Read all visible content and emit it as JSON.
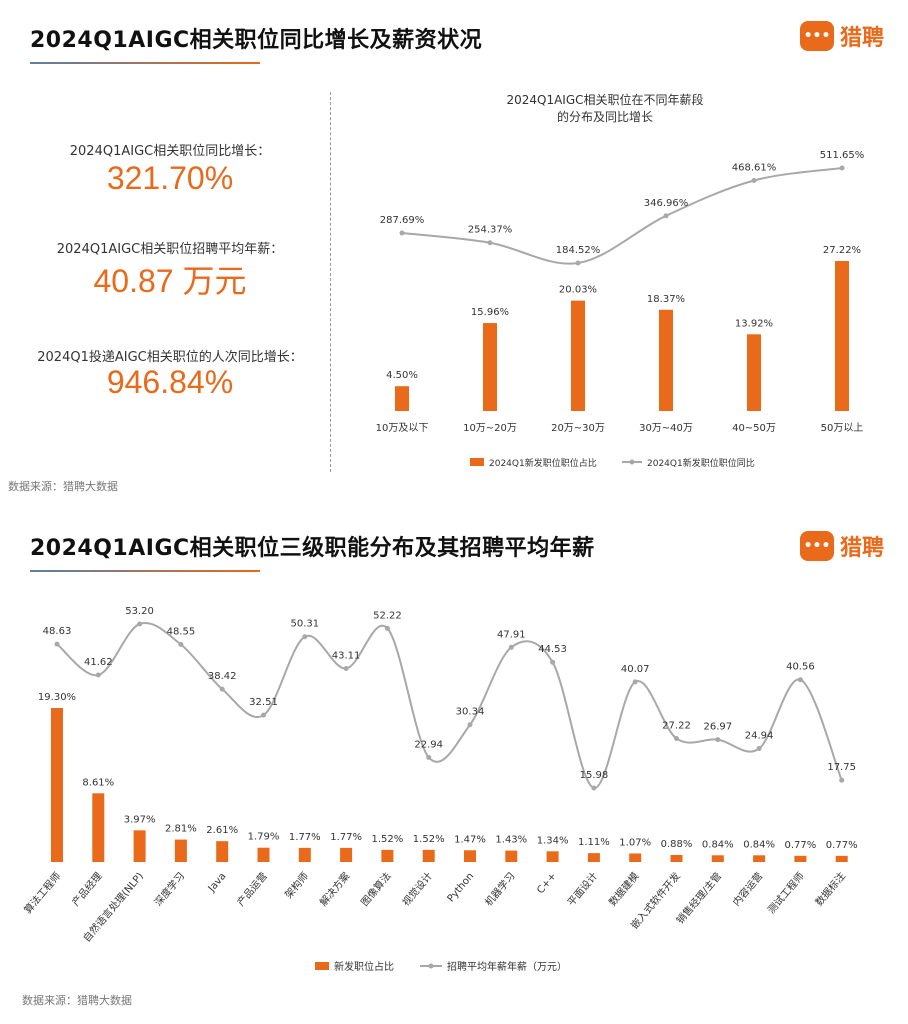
{
  "header1": {
    "title": "2024Q1AIGC相关职位同比增长及薪资状况",
    "logo_text": "猎聘"
  },
  "stats": [
    {
      "label": "2024Q1AIGC相关职位同比增长：",
      "value": "321.70%"
    },
    {
      "label": "2024Q1AIGC相关职位招聘平均年薪：",
      "value": "40.87 万元"
    },
    {
      "label": "2024Q1投递AIGC相关职位的人次同比增长：",
      "value": "946.84%"
    }
  ],
  "source1": "数据来源：猎聘大数据",
  "header2": {
    "title": "2024Q1AIGC相关职位三级职能分布及其招聘平均年薪",
    "logo_text": "猎聘"
  },
  "source2": "数据来源：猎聘大数据",
  "colors": {
    "bar": "#e86a1a",
    "line": "#a8a8a8",
    "title_line": "#5b7fa6"
  },
  "chart_data": [
    {
      "type": "bar",
      "title": "2024Q1AIGC相关职位在不同年薪段\n的分布及同比增长",
      "categories": [
        "10万及以下",
        "10万~20万",
        "20万~30万",
        "30万~40万",
        "40~50万",
        "50万以上"
      ],
      "series": [
        {
          "name": "2024Q1新发职位职位占比",
          "type": "bar",
          "values": [
            4.5,
            15.96,
            20.03,
            18.37,
            13.92,
            27.22
          ],
          "labels": [
            "4.50%",
            "15.96%",
            "20.03%",
            "18.37%",
            "13.92%",
            "27.22%"
          ]
        },
        {
          "name": "2024Q1新发职位职位同比",
          "type": "line",
          "values": [
            287.69,
            254.37,
            184.52,
            346.96,
            468.61,
            511.65
          ],
          "labels": [
            "287.69%",
            "254.37%",
            "184.52%",
            "346.96%",
            "468.61%",
            "511.65%"
          ]
        }
      ],
      "legend": "bottom"
    },
    {
      "type": "bar",
      "categories": [
        "算法工程师",
        "产品经理",
        "自然语言处理(NLP)",
        "深度学习",
        "Java",
        "产品运营",
        "架构师",
        "解决方案",
        "图像算法",
        "视觉设计",
        "Python",
        "机器学习",
        "C++",
        "平面设计",
        "数据建模",
        "嵌入式软件开发",
        "销售经理/主管",
        "内容运营",
        "测试工程师",
        "数据标注"
      ],
      "series": [
        {
          "name": "新发职位占比",
          "type": "bar",
          "values": [
            19.3,
            8.61,
            3.97,
            2.81,
            2.61,
            1.79,
            1.77,
            1.77,
            1.52,
            1.52,
            1.47,
            1.43,
            1.34,
            1.11,
            1.07,
            0.88,
            0.84,
            0.84,
            0.77,
            0.77
          ],
          "labels": [
            "19.30%",
            "8.61%",
            "3.97%",
            "2.81%",
            "2.61%",
            "1.79%",
            "1.77%",
            "1.77%",
            "1.52%",
            "1.52%",
            "1.47%",
            "1.43%",
            "1.34%",
            "1.11%",
            "1.07%",
            "0.88%",
            "0.84%",
            "0.84%",
            "0.77%",
            "0.77%"
          ]
        },
        {
          "name": "招聘平均年薪年薪（万元）",
          "type": "line",
          "values": [
            48.63,
            41.62,
            53.2,
            48.55,
            38.42,
            32.51,
            50.31,
            43.11,
            52.22,
            22.94,
            30.34,
            47.91,
            44.53,
            15.98,
            40.07,
            27.22,
            26.97,
            24.94,
            40.56,
            17.75
          ],
          "labels": [
            "48.63",
            "41.62",
            "53.20",
            "48.55",
            "38.42",
            "32.51",
            "50.31",
            "43.11",
            "52.22",
            "22.94",
            "30.34",
            "47.91",
            "44.53",
            "15.98",
            "40.07",
            "27.22",
            "26.97",
            "24.94",
            "40.56",
            "17.75"
          ]
        }
      ],
      "legend": "bottom"
    }
  ]
}
